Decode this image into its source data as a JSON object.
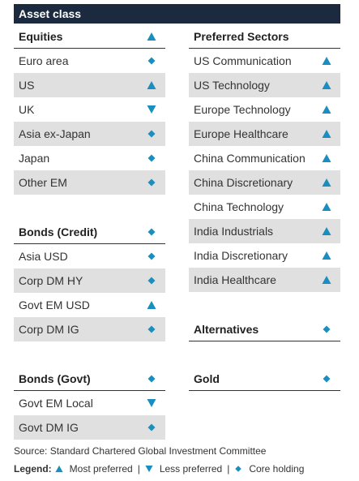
{
  "title": "Asset class",
  "legend_colors": {
    "symbol": "#1a8fbf"
  },
  "left_column": {
    "equities": {
      "header": "Equities",
      "header_symbol": "up",
      "rows": [
        {
          "label": "Euro area",
          "symbol": "diamond"
        },
        {
          "label": "US",
          "symbol": "up"
        },
        {
          "label": "UK",
          "symbol": "down"
        },
        {
          "label": "Asia ex-Japan",
          "symbol": "diamond"
        },
        {
          "label": "Japan",
          "symbol": "diamond"
        },
        {
          "label": "Other EM",
          "symbol": "diamond"
        }
      ]
    },
    "bonds_credit": {
      "header": "Bonds (Credit)",
      "header_symbol": "diamond",
      "rows": [
        {
          "label": "Asia USD",
          "symbol": "diamond"
        },
        {
          "label": "Corp DM HY",
          "symbol": "diamond"
        },
        {
          "label": "Govt EM USD",
          "symbol": "up"
        },
        {
          "label": "Corp DM IG",
          "symbol": "diamond"
        }
      ]
    },
    "bonds_govt": {
      "header": "Bonds (Govt)",
      "header_symbol": "diamond",
      "rows": [
        {
          "label": "Govt EM Local",
          "symbol": "down"
        },
        {
          "label": "Govt DM IG",
          "symbol": "diamond"
        }
      ]
    }
  },
  "right_column": {
    "preferred_sectors": {
      "header": "Preferred Sectors",
      "rows": [
        {
          "label": "US Communication",
          "symbol": "up"
        },
        {
          "label": "US Technology",
          "symbol": "up"
        },
        {
          "label": "Europe Technology",
          "symbol": "up"
        },
        {
          "label": "Europe Healthcare",
          "symbol": "up"
        },
        {
          "label": "China Communication",
          "symbol": "up"
        },
        {
          "label": "China Discretionary",
          "symbol": "up"
        },
        {
          "label": "China Technology",
          "symbol": "up"
        },
        {
          "label": "India Industrials",
          "symbol": "up"
        },
        {
          "label": "India Discretionary",
          "symbol": "up"
        },
        {
          "label": "India Healthcare",
          "symbol": "up"
        }
      ]
    },
    "alternatives": {
      "header": "Alternatives",
      "header_symbol": "diamond"
    },
    "gold": {
      "header": "Gold",
      "header_symbol": "diamond"
    }
  },
  "footer": {
    "source": "Source: Standard Chartered Global Investment Committee",
    "legend_label": "Legend:",
    "most_preferred": "Most preferred",
    "less_preferred": "Less preferred",
    "core_holding": "Core holding",
    "separator": "|"
  }
}
